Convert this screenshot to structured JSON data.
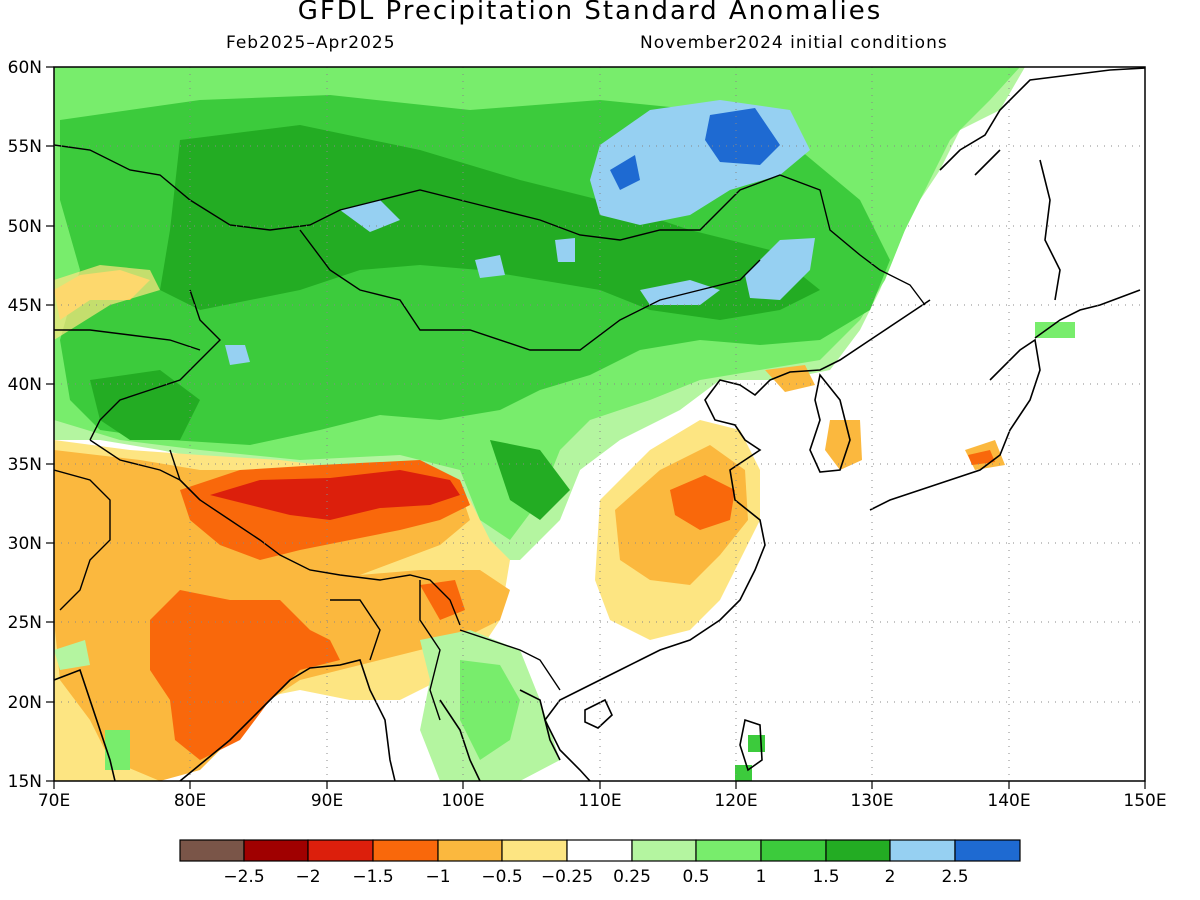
{
  "title": "GFDL Precipitation Standard Anomalies",
  "subtitle_left": "Feb2025–Apr2025",
  "subtitle_right": "November2024 initial conditions",
  "colors": {
    "lt_m2_5": "#7a5548",
    "m2_5_m2": "#a00000",
    "m2_m1_5": "#dc1f0c",
    "m1_5_m1": "#f9680b",
    "m1_m0_5": "#fbb83e",
    "m0_5_m0_25": "#fde582",
    "neutral": "#ffffff",
    "p0_25_p0_5": "#b4f5a0",
    "p0_5_p1": "#78ed6c",
    "p1_p1_5": "#3ccb3c",
    "p1_5_p2": "#23ac23",
    "p2_p2_5": "#96d0f2",
    "gt_p2_5": "#1e6ad2"
  },
  "map": {
    "lon_ticks": [
      "70E",
      "80E",
      "90E",
      "100E",
      "110E",
      "120E",
      "130E",
      "140E",
      "150E"
    ],
    "lat_ticks": [
      "60N",
      "55N",
      "50N",
      "45N",
      "40N",
      "35N",
      "30N",
      "25N",
      "20N",
      "15N"
    ],
    "lon_range": [
      70,
      150
    ],
    "lat_range": [
      15,
      60
    ],
    "grid": "dotted"
  },
  "colorbar": {
    "labels": [
      "−2.5",
      "−2",
      "−1.5",
      "−1",
      "−0.5",
      "−0.25",
      "0.25",
      "0.5",
      "1",
      "1.5",
      "2",
      "2.5"
    ]
  }
}
